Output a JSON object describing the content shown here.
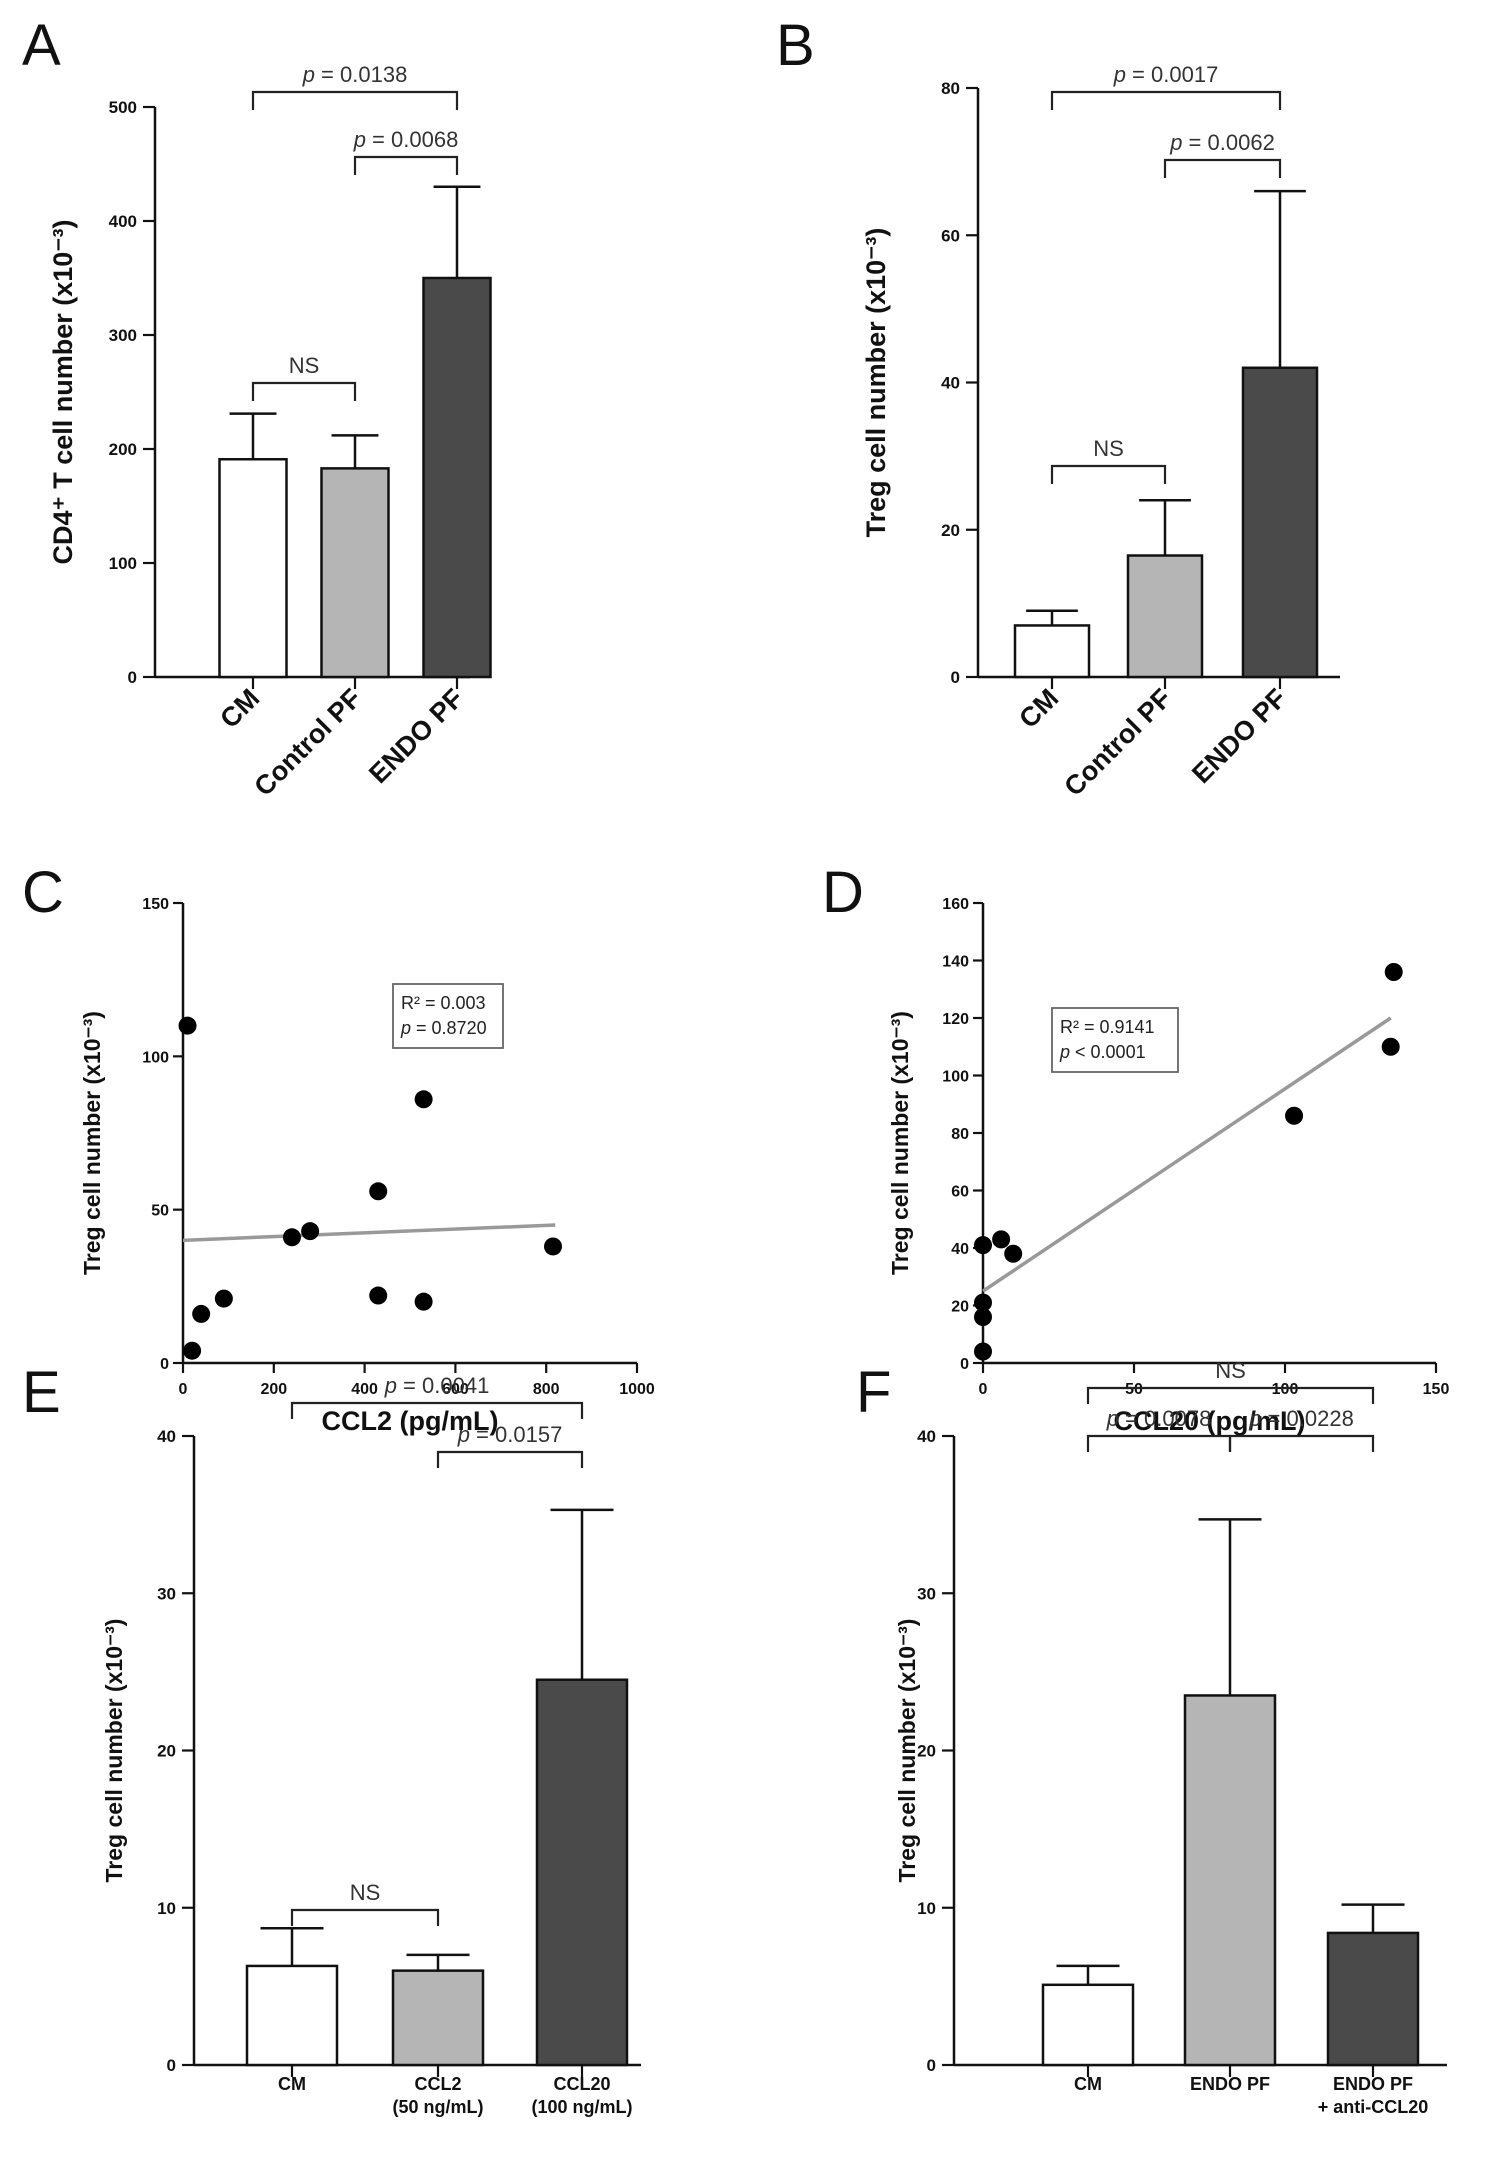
{
  "figure": {
    "colors": {
      "white": "#ffffff",
      "light": "#b5b5b5",
      "dark": "#4a4a4a",
      "fit_line": "#999999",
      "point": "#000000"
    }
  },
  "chart_data": [
    {
      "panel": "A",
      "type": "bar",
      "categories": [
        "CM",
        "Control PF",
        "ENDO PF"
      ],
      "values": [
        191,
        183,
        350
      ],
      "errors": [
        40,
        29,
        80
      ],
      "fills": [
        "white",
        "light",
        "dark"
      ],
      "ylabel": "CD4⁺ T cell number (x10⁻³)",
      "ylim": [
        0,
        500
      ],
      "yticks": [
        "0",
        "100",
        "200",
        "300",
        "400",
        "500"
      ],
      "rotated_labels": true,
      "brackets": [
        {
          "from": 0,
          "to": 1,
          "label": "NS"
        },
        {
          "from": 1,
          "to": 2,
          "label": "p = 0.0068"
        },
        {
          "from": 0,
          "to": 2,
          "label": "p = 0.0138"
        }
      ]
    },
    {
      "panel": "B",
      "type": "bar",
      "categories": [
        "CM",
        "Control PF",
        "ENDO PF"
      ],
      "values": [
        7,
        16.5,
        42
      ],
      "errors": [
        2,
        7.5,
        24
      ],
      "fills": [
        "white",
        "light",
        "dark"
      ],
      "ylabel": "Treg cell number  (x10⁻³)",
      "ylim": [
        0,
        80
      ],
      "yticks": [
        "0",
        "20",
        "40",
        "60",
        "80"
      ],
      "rotated_labels": true,
      "brackets": [
        {
          "from": 0,
          "to": 1,
          "label": "NS"
        },
        {
          "from": 1,
          "to": 2,
          "label": "p = 0.0062"
        },
        {
          "from": 0,
          "to": 2,
          "label": "p = 0.0017"
        }
      ]
    },
    {
      "panel": "C",
      "type": "scatter",
      "xlabel": "CCL2 (pg/mL)",
      "ylabel": "Treg cell number (x10⁻³)",
      "xlim": [
        0,
        1000
      ],
      "ylim": [
        0,
        150
      ],
      "xticks": [
        "0",
        "200",
        "400",
        "600",
        "800",
        "1000"
      ],
      "yticks": [
        "0",
        "50",
        "100",
        "150"
      ],
      "points": [
        [
          10,
          110
        ],
        [
          20,
          4
        ],
        [
          40,
          16
        ],
        [
          90,
          21
        ],
        [
          240,
          41
        ],
        [
          280,
          43
        ],
        [
          430,
          56
        ],
        [
          430,
          22
        ],
        [
          530,
          86
        ],
        [
          530,
          20
        ],
        [
          815,
          38
        ]
      ],
      "fit": {
        "x": [
          0,
          820
        ],
        "y": [
          40,
          45
        ]
      },
      "stat_lines": [
        "R² = 0.003",
        "p = 0.8720"
      ]
    },
    {
      "panel": "D",
      "type": "scatter",
      "xlabel": "CCL20 (pg/mL)",
      "ylabel": "Treg cell number (x10⁻³)",
      "xlim": [
        0,
        150
      ],
      "ylim": [
        0,
        160
      ],
      "xticks": [
        "0",
        "50",
        "100",
        "150"
      ],
      "yticks": [
        "0",
        "20",
        "40",
        "60",
        "80",
        "100",
        "120",
        "140",
        "160"
      ],
      "points": [
        [
          0,
          4
        ],
        [
          0,
          16
        ],
        [
          0,
          21
        ],
        [
          0,
          41
        ],
        [
          6,
          43
        ],
        [
          10,
          38
        ],
        [
          103,
          86
        ],
        [
          135,
          110
        ],
        [
          136,
          136
        ]
      ],
      "fit": {
        "x": [
          0,
          135
        ],
        "y": [
          25,
          120
        ]
      },
      "stat_lines": [
        "R² = 0.9141",
        "p < 0.0001"
      ]
    },
    {
      "panel": "E",
      "type": "bar",
      "categories": [
        [
          "CM"
        ],
        [
          "CCL2",
          "(50 ng/mL)"
        ],
        [
          "CCL20",
          "(100 ng/mL)"
        ]
      ],
      "values": [
        6.3,
        6.0,
        24.5
      ],
      "errors": [
        2.4,
        1.0,
        10.8
      ],
      "fills": [
        "white",
        "light",
        "dark"
      ],
      "ylabel": "Treg cell number  (x10⁻³)",
      "ylim": [
        0,
        40
      ],
      "yticks": [
        "0",
        "10",
        "20",
        "30",
        "40"
      ],
      "rotated_labels": false,
      "brackets": [
        {
          "from": 0,
          "to": 1,
          "label": "NS"
        },
        {
          "from": 1,
          "to": 2,
          "label": "p = 0.0157"
        },
        {
          "from": 0,
          "to": 2,
          "label": "p = 0.0041"
        }
      ]
    },
    {
      "panel": "F",
      "type": "bar",
      "categories": [
        [
          "CM"
        ],
        [
          "ENDO PF"
        ],
        [
          "ENDO PF",
          "+ anti-CCL20"
        ]
      ],
      "values": [
        5.1,
        23.5,
        8.4
      ],
      "errors": [
        1.2,
        11.2,
        1.8
      ],
      "fills": [
        "white",
        "light",
        "dark"
      ],
      "ylabel": "Treg cell number  (x10⁻³)",
      "ylim": [
        0,
        40
      ],
      "yticks": [
        "0",
        "10",
        "20",
        "30",
        "40"
      ],
      "rotated_labels": false,
      "brackets": [
        {
          "from": 0,
          "to": 1,
          "label": "p = 0.0078"
        },
        {
          "from": 1,
          "to": 2,
          "label": "p = 0.0228"
        },
        {
          "from": 0,
          "to": 2,
          "label": "NS"
        }
      ]
    }
  ]
}
